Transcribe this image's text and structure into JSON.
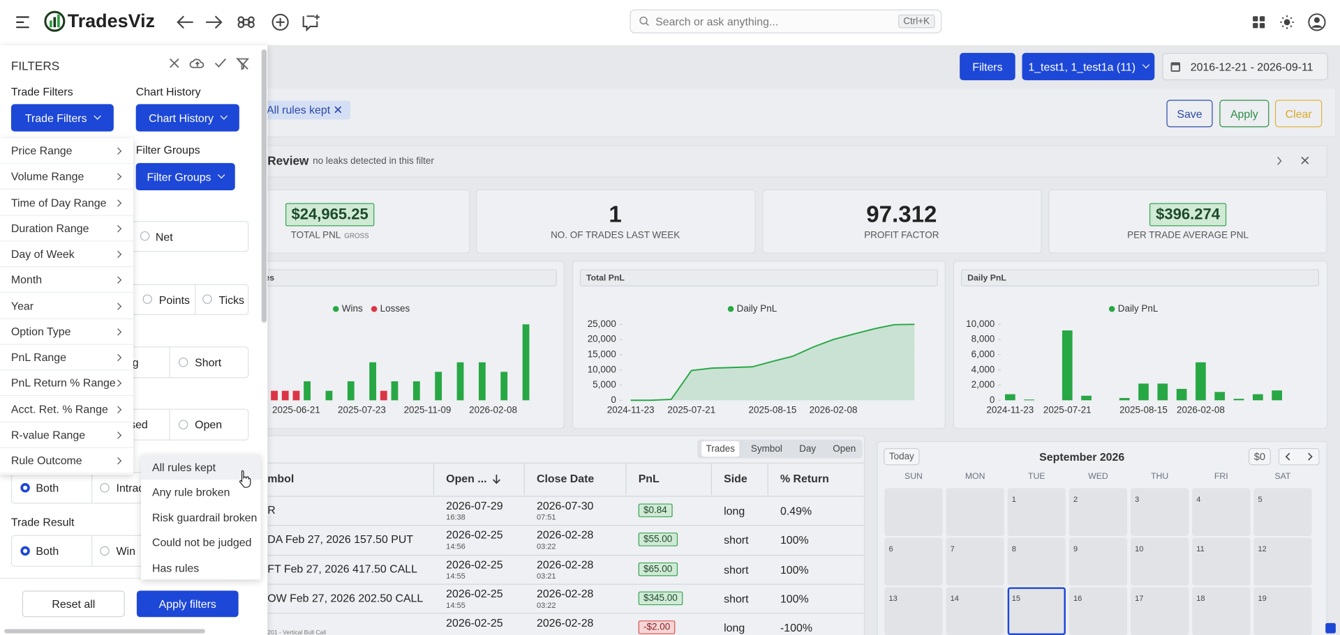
{
  "topbar": {
    "brand": "TradesViz",
    "search": "Search or ask anything...",
    "shortcut": "Ctrl+K"
  },
  "toolbar": {
    "filters": "Filters",
    "accounts": "1_test1, 1_test1a (11)",
    "date_range": "2016-12-21 - 2026-09-11",
    "active_chip": "All rules kept",
    "save": "Save",
    "apply": "Apply",
    "clear": "Clear"
  },
  "review": {
    "title": "Review",
    "note": "no leaks detected in this filter"
  },
  "stats": [
    {
      "value": "$24,965.25",
      "label": "TOTAL PNL",
      "sub": "GROSS",
      "boxed": true
    },
    {
      "value": "1",
      "label": "NO. OF TRADES LAST WEEK",
      "boxed": false
    },
    {
      "value": "97.312",
      "label": "PROFIT FACTOR",
      "boxed": false
    },
    {
      "value": "$396.274",
      "label": "PER TRADE AVERAGE PNL",
      "boxed": true
    }
  ],
  "charts": [
    {
      "type": "bar",
      "title": "es",
      "categories": [
        null,
        null,
        "2025-06-21",
        null,
        null,
        null,
        null,
        null,
        "2025-07-23",
        null,
        null,
        null,
        null,
        null,
        "2025-11-09",
        null,
        null,
        null,
        null,
        null,
        "2026-02-08",
        null,
        null,
        null
      ],
      "series": [
        {
          "name": "Wins",
          "color": "#28a745",
          "values": [
            0,
            0,
            0,
            2,
            0,
            1,
            0,
            2,
            0,
            4,
            0,
            2,
            0,
            2,
            0,
            3,
            0,
            4,
            0,
            4,
            0,
            3,
            0,
            8
          ]
        },
        {
          "name": "Losses",
          "color": "#dc3545",
          "values": [
            1,
            1,
            1,
            0,
            0,
            0,
            0,
            0,
            0,
            0,
            1,
            0,
            0,
            0,
            0,
            0,
            0,
            0,
            0,
            0,
            0,
            0,
            0,
            0
          ]
        }
      ],
      "ylim": [
        0,
        8
      ]
    },
    {
      "type": "area",
      "title": "Total PnL",
      "categories": [
        "2024-11-23",
        null,
        null,
        "2025-07-21",
        null,
        null,
        null,
        "2025-08-15",
        null,
        null,
        "2026-02-08",
        null,
        null,
        null,
        null
      ],
      "series": [
        {
          "name": "Daily PnL",
          "color": "#28a745",
          "values": [
            0,
            0,
            300,
            9800,
            10600,
            10800,
            11000,
            12800,
            14500,
            17500,
            20000,
            21800,
            23500,
            24900,
            25000
          ]
        }
      ],
      "ylim": [
        0,
        25000
      ],
      "yticks": [
        0,
        {
          "value": 5000,
          "label": "5,000"
        },
        {
          "value": 10000,
          "label": "10,000"
        },
        {
          "value": 15000,
          "label": "15,000"
        },
        {
          "value": 20000,
          "label": "20,000"
        },
        {
          "value": 25000,
          "label": "25,000"
        }
      ]
    },
    {
      "type": "bar",
      "title": "Daily PnL",
      "categories": [
        "2024-11-23",
        null,
        null,
        "2025-07-21",
        null,
        null,
        null,
        "2025-08-15",
        null,
        null,
        "2026-02-08",
        null,
        null,
        null,
        null
      ],
      "series": [
        {
          "name": "Daily PnL",
          "color": "#28a745",
          "values": [
            800,
            100,
            0,
            9200,
            600,
            0,
            300,
            2200,
            2200,
            1500,
            5000,
            1100,
            200,
            800,
            1300
          ]
        }
      ],
      "ylim": [
        0,
        10000
      ],
      "yticks": [
        0,
        {
          "value": 2000,
          "label": "2,000"
        },
        {
          "value": 4000,
          "label": "4,000"
        },
        {
          "value": 6000,
          "label": "6,000"
        },
        {
          "value": 8000,
          "label": "8,000"
        },
        {
          "value": 10000,
          "label": "10,000"
        }
      ]
    }
  ],
  "table": {
    "tabs": [
      "Trades",
      "Symbol",
      "Day",
      "Open"
    ],
    "columns": [
      "mbol",
      "Open ...",
      "Close Date",
      "PnL",
      "Side",
      "% Return"
    ],
    "rows": [
      {
        "symbol": "R",
        "open_date": "2026-07-29",
        "open_time": "16:38",
        "close_date": "2026-07-30",
        "close_time": "07:51",
        "pnl": "$0.84",
        "side": "long",
        "return": "0.49%"
      },
      {
        "symbol": "DA Feb 27, 2026 157.50 PUT",
        "open_date": "2026-02-25",
        "open_time": "14:56",
        "close_date": "2026-02-28",
        "close_time": "03:22",
        "pnl": "$55.00",
        "side": "short",
        "return": "100%"
      },
      {
        "symbol": "FT Feb 27, 2026 417.50 CALL",
        "open_date": "2026-02-25",
        "open_time": "14:55",
        "close_date": "2026-02-28",
        "close_time": "03:21",
        "pnl": "$65.00",
        "side": "short",
        "return": "100%"
      },
      {
        "symbol": "OW Feb 27, 2026 202.50 CALL",
        "open_date": "2026-02-25",
        "open_time": "14:55",
        "close_date": "2026-02-28",
        "close_time": "03:22",
        "pnl": "$345.00",
        "side": "short",
        "return": "100%"
      },
      {
        "symbol_note": "201 - Vertical Bull Call",
        "open_date": "2026-02-25",
        "close_date": "2026-02-28",
        "pnl": "-$2.00",
        "side": "long",
        "return": "-100%"
      }
    ]
  },
  "calendar": {
    "today": "Today",
    "month": "September 2026",
    "total": "$0",
    "weekdays": [
      "SUN",
      "MON",
      "TUE",
      "WED",
      "THU",
      "FRI",
      "SAT"
    ],
    "weeks": [
      [
        null,
        null,
        1,
        2,
        3,
        4,
        5
      ],
      [
        6,
        7,
        8,
        9,
        10,
        11,
        12
      ],
      [
        13,
        14,
        15,
        16,
        17,
        18,
        19
      ]
    ],
    "highlighted_day": 15
  },
  "filters": {
    "title": "FILTERS",
    "trade_filters_label": "Trade Filters",
    "trade_filters_button": "Trade Filters",
    "chart_history_label": "Chart History",
    "chart_history_button": "Chart History",
    "filter_groups_label": "Filter Groups",
    "filter_groups_button": "Filter Groups",
    "menu": [
      "Price Range",
      "Volume Range",
      "Time of Day Range",
      "Duration Range",
      "Day of Week",
      "Month",
      "Year",
      "Option Type",
      "PnL Range",
      "PnL Return % Range",
      "Acct. Ret. % Range",
      "R-value Range",
      "Rule Outcome"
    ],
    "submenu": [
      "All rules kept",
      "Any rule broken",
      "Risk guardrail broken",
      "Could not be judged",
      "Has rules"
    ],
    "options": {
      "net": "Net",
      "points": "Points",
      "ticks": "Ticks",
      "long": "g",
      "short": "Short",
      "closed": "sed",
      "open": "Open",
      "both": "Both",
      "intraday": "Intrad"
    },
    "trade_result_label": "Trade Result",
    "trade_result": {
      "both": "Both",
      "win": "Win"
    },
    "reset": "Reset all",
    "apply": "Apply filters"
  }
}
